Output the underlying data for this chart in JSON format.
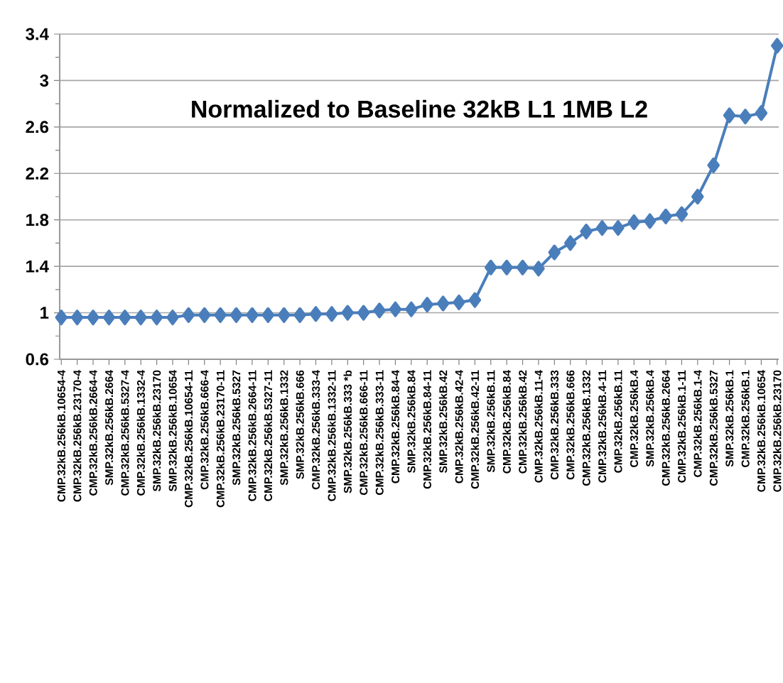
{
  "chart_data": {
    "type": "line",
    "title": "Normalized to Baseline 32kB L1 1MB L2",
    "categories": [
      "CMP.32kB.256kB.10654-4",
      "CMP.32kB.256kB.23170-4",
      "CMP.32kB.256kB.2664-4",
      "SMP.32kB.256kB.2664",
      "CMP.32kB.256kB.5327-4",
      "CMP.32kB.256kB.1332-4",
      "SMP.32kB.256kB.23170",
      "SMP.32kB.256kB.10654",
      "CMP.32kB.256kB.10654-11",
      "CMP.32kB.256kB.666-4",
      "CMP.32kB.256kB.23170-11",
      "SMP.32kB.256kB.5327",
      "CMP.32kB.256kB.2664-11",
      "CMP.32kB.256kB.5327-11",
      "SMP.32kB.256kB.1332",
      "SMP.32kB.256kB.666",
      "CMP.32kB.256kB.333-4",
      "CMP.32kB.256kB.1332-11",
      "SMP.32kB.256kB.333 *b",
      "CMP.32kB.256kB.666-11",
      "CMP.32kB.256kB.333-11",
      "CMP.32kB.256kB.84-4",
      "SMP.32kB.256kB.84",
      "CMP.32kB.256kB.84-11",
      "SMP.32kB.256kB.42",
      "CMP.32kB.256kB.42-4",
      "CMP.32kB.256kB.42-11",
      "SMP.32kB.256kB.11",
      "CMP.32kB.256kB.84",
      "CMP.32kB.256kB.42",
      "CMP.32kB.256kB.11-4",
      "CMP.32kB.256kB.333",
      "CMP.32kB.256kB.666",
      "CMP.32kB.256kB.1332",
      "CMP.32kB.256kB.4-11",
      "CMP.32kB.256kB.11",
      "CMP.32kB.256kB.4",
      "SMP.32kB.256kB.4",
      "CMP.32kB.256kB.2664",
      "CMP.32kB.256kB.1-11",
      "CMP.32kB.256kB.1-4",
      "CMP.32kB.256kB.5327",
      "SMP.32kB.256kB.1",
      "CMP.32kB.256kB.1",
      "CMP.32kB.256kB.10654",
      "CMP.32kB.256kB.23170"
    ],
    "values": [
      0.96,
      0.96,
      0.96,
      0.96,
      0.96,
      0.96,
      0.96,
      0.96,
      0.98,
      0.98,
      0.98,
      0.98,
      0.98,
      0.98,
      0.98,
      0.98,
      0.99,
      0.99,
      1.0,
      1.0,
      1.02,
      1.03,
      1.03,
      1.07,
      1.08,
      1.09,
      1.11,
      1.39,
      1.39,
      1.39,
      1.38,
      1.52,
      1.6,
      1.7,
      1.73,
      1.73,
      1.78,
      1.79,
      1.83,
      1.85,
      2.0,
      2.27,
      2.7,
      2.69,
      2.72,
      3.3
    ],
    "color": "#4a7ebb",
    "ylim": [
      0.6,
      3.4
    ],
    "yticks": [
      0.6,
      1,
      1.4,
      1.8,
      2.2,
      2.6,
      3,
      3.4
    ],
    "grid": "y",
    "marker": "diamond",
    "line_style": "solid"
  }
}
